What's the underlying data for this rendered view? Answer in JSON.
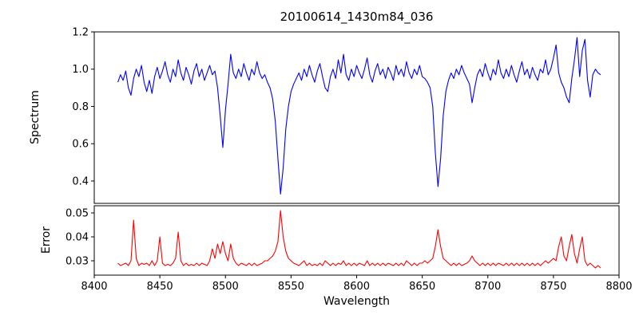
{
  "figure": {
    "title": "20100614_1430m84_036",
    "xlabel": "Wavelength",
    "background": "#ffffff"
  },
  "chart_data": [
    {
      "type": "line",
      "name": "spectrum",
      "title": "20100614_1430m84_036",
      "ylabel": "Spectrum",
      "color": "#0000ff",
      "xlim": [
        8400,
        8800
      ],
      "ylim": [
        0.28,
        1.2
      ],
      "grid": false,
      "legend": "none",
      "yticks": [
        {
          "v": 0.4,
          "label": "0.4"
        },
        {
          "v": 0.6,
          "label": "0.6"
        },
        {
          "v": 0.8,
          "label": "0.8"
        },
        {
          "v": 1.0,
          "label": "1.0"
        },
        {
          "v": 1.2,
          "label": "1.2"
        }
      ],
      "x_start": 8418,
      "x_step": 2,
      "values": [
        0.93,
        0.97,
        0.94,
        0.99,
        0.9,
        0.86,
        0.95,
        1.0,
        0.96,
        1.02,
        0.93,
        0.88,
        0.94,
        0.87,
        0.96,
        1.01,
        0.95,
        0.99,
        1.04,
        0.97,
        0.93,
        1.0,
        0.96,
        1.05,
        0.98,
        0.94,
        1.01,
        0.97,
        0.92,
        0.99,
        1.03,
        0.96,
        1.0,
        0.94,
        0.98,
        1.02,
        0.97,
        0.99,
        0.9,
        0.75,
        0.58,
        0.78,
        0.92,
        1.08,
        0.98,
        0.95,
        1.0,
        0.96,
        1.03,
        0.98,
        0.94,
        1.0,
        0.97,
        1.04,
        0.98,
        0.95,
        0.97,
        0.93,
        0.9,
        0.84,
        0.72,
        0.52,
        0.33,
        0.47,
        0.68,
        0.8,
        0.88,
        0.92,
        0.95,
        0.98,
        0.94,
        1.0,
        0.96,
        1.02,
        0.97,
        0.93,
        0.99,
        1.03,
        0.96,
        0.9,
        0.88,
        0.96,
        1.0,
        0.95,
        1.05,
        0.98,
        1.08,
        0.97,
        0.94,
        1.0,
        0.96,
        1.02,
        0.98,
        0.95,
        1.0,
        1.06,
        0.97,
        0.93,
        0.99,
        1.03,
        0.97,
        1.0,
        0.95,
        1.01,
        0.98,
        0.94,
        1.02,
        0.97,
        1.0,
        0.96,
        1.04,
        0.98,
        0.95,
        1.0,
        0.97,
        1.02,
        0.96,
        0.95,
        0.93,
        0.9,
        0.8,
        0.55,
        0.37,
        0.52,
        0.75,
        0.88,
        0.94,
        0.98,
        0.95,
        1.0,
        0.97,
        1.02,
        0.98,
        0.95,
        0.92,
        0.82,
        0.9,
        0.97,
        1.0,
        0.96,
        1.03,
        0.98,
        0.94,
        1.0,
        0.97,
        1.05,
        0.98,
        0.95,
        1.0,
        0.96,
        1.02,
        0.97,
        0.93,
        0.99,
        1.04,
        0.97,
        1.0,
        0.95,
        1.01,
        0.97,
        0.94,
        1.0,
        0.98,
        1.05,
        0.97,
        1.0,
        1.06,
        1.13,
        0.98,
        0.93,
        0.9,
        0.85,
        0.82,
        0.95,
        1.05,
        1.17,
        0.96,
        1.1,
        1.16,
        0.94,
        0.85,
        0.97,
        1.0,
        0.98,
        0.97
      ]
    },
    {
      "type": "line",
      "name": "error",
      "ylabel": "Error",
      "xlabel": "Wavelength",
      "color": "#ff0000",
      "xlim": [
        8400,
        8800
      ],
      "ylim": [
        0.024,
        0.053
      ],
      "grid": false,
      "legend": "none",
      "yticks": [
        {
          "v": 0.03,
          "label": "0.03"
        },
        {
          "v": 0.04,
          "label": "0.04"
        },
        {
          "v": 0.05,
          "label": "0.05"
        }
      ],
      "xticks": [
        {
          "v": 8400,
          "label": "8400"
        },
        {
          "v": 8450,
          "label": "8450"
        },
        {
          "v": 8500,
          "label": "8500"
        },
        {
          "v": 8550,
          "label": "8550"
        },
        {
          "v": 8600,
          "label": "8600"
        },
        {
          "v": 8650,
          "label": "8650"
        },
        {
          "v": 8700,
          "label": "8700"
        },
        {
          "v": 8750,
          "label": "8750"
        },
        {
          "v": 8800,
          "label": "8800"
        }
      ],
      "x_start": 8418,
      "x_step": 2,
      "values": [
        0.029,
        0.028,
        0.0285,
        0.029,
        0.028,
        0.03,
        0.047,
        0.031,
        0.028,
        0.029,
        0.0285,
        0.029,
        0.028,
        0.03,
        0.028,
        0.03,
        0.04,
        0.029,
        0.028,
        0.0285,
        0.028,
        0.029,
        0.031,
        0.042,
        0.03,
        0.028,
        0.029,
        0.028,
        0.0285,
        0.028,
        0.029,
        0.028,
        0.029,
        0.0285,
        0.028,
        0.03,
        0.035,
        0.031,
        0.037,
        0.033,
        0.038,
        0.033,
        0.03,
        0.037,
        0.031,
        0.029,
        0.028,
        0.029,
        0.0285,
        0.028,
        0.029,
        0.028,
        0.029,
        0.028,
        0.0285,
        0.029,
        0.03,
        0.03,
        0.031,
        0.032,
        0.034,
        0.038,
        0.051,
        0.04,
        0.034,
        0.031,
        0.03,
        0.029,
        0.0285,
        0.028,
        0.029,
        0.03,
        0.028,
        0.029,
        0.028,
        0.0285,
        0.028,
        0.029,
        0.028,
        0.03,
        0.029,
        0.028,
        0.029,
        0.028,
        0.029,
        0.0285,
        0.03,
        0.028,
        0.029,
        0.028,
        0.029,
        0.028,
        0.029,
        0.0285,
        0.028,
        0.03,
        0.028,
        0.029,
        0.028,
        0.029,
        0.028,
        0.029,
        0.028,
        0.029,
        0.0285,
        0.028,
        0.029,
        0.028,
        0.029,
        0.028,
        0.03,
        0.029,
        0.028,
        0.029,
        0.028,
        0.029,
        0.029,
        0.03,
        0.029,
        0.03,
        0.031,
        0.036,
        0.043,
        0.036,
        0.031,
        0.03,
        0.029,
        0.028,
        0.029,
        0.028,
        0.029,
        0.028,
        0.0285,
        0.029,
        0.03,
        0.032,
        0.03,
        0.029,
        0.028,
        0.029,
        0.028,
        0.029,
        0.028,
        0.029,
        0.028,
        0.029,
        0.0285,
        0.028,
        0.029,
        0.028,
        0.029,
        0.028,
        0.029,
        0.028,
        0.029,
        0.028,
        0.029,
        0.028,
        0.029,
        0.028,
        0.029,
        0.028,
        0.029,
        0.03,
        0.029,
        0.03,
        0.031,
        0.03,
        0.036,
        0.04,
        0.032,
        0.03,
        0.036,
        0.041,
        0.033,
        0.029,
        0.035,
        0.04,
        0.03,
        0.028,
        0.029,
        0.028,
        0.027,
        0.028,
        0.027
      ]
    }
  ]
}
